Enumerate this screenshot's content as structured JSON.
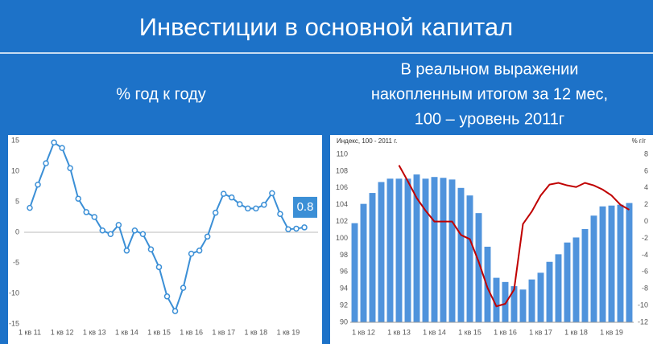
{
  "slide_title": "Инвестиции в основной капитал",
  "chart_data": [
    {
      "type": "line",
      "title": "% год к году",
      "categories": [
        "1 кв 11",
        null,
        null,
        null,
        "1 кв 12",
        null,
        null,
        null,
        "1 кв 13",
        null,
        null,
        null,
        "1 кв 14",
        null,
        null,
        null,
        "1 кв 15",
        null,
        null,
        null,
        "1 кв 16",
        null,
        null,
        null,
        "1 кв 17",
        null,
        null,
        null,
        "1 кв 18",
        null,
        null,
        null,
        "1 кв 19",
        null,
        null
      ],
      "values": [
        4.0,
        7.8,
        11.3,
        14.7,
        13.8,
        10.5,
        5.5,
        3.3,
        2.5,
        0.3,
        -0.3,
        1.2,
        -3.0,
        0.3,
        -0.3,
        -2.8,
        -5.7,
        -10.5,
        -12.9,
        -9.1,
        -3.5,
        -3.0,
        -0.7,
        3.2,
        6.3,
        5.7,
        4.6,
        3.9,
        3.9,
        4.5,
        6.4,
        3.0,
        0.5,
        0.6,
        0.8
      ],
      "labeled_index": 34,
      "color": "#3b8fd6",
      "ylim": [
        -15,
        15
      ],
      "yticks": [
        -15,
        -10,
        -5,
        0,
        5,
        10,
        15
      ],
      "grid": false
    },
    {
      "type": "combo",
      "title": [
        "В реальном выражении",
        "накопленным итогом за 12 мес,",
        "100 – уровень 2011г"
      ],
      "ylabel": "Индекс, 100 - 2011 г.",
      "y2label": "% г/г",
      "categories": [
        null,
        "1 кв 12",
        null,
        null,
        null,
        "1 кв 13",
        null,
        null,
        null,
        "1 кв 14",
        null,
        null,
        null,
        "1 кв 15",
        null,
        null,
        null,
        "1 кв 16",
        null,
        null,
        null,
        "1 кв 17",
        null,
        null,
        null,
        "1 кв 18",
        null,
        null,
        null,
        "1 кв 19",
        null,
        null
      ],
      "series": [
        {
          "type": "bar",
          "color": "#4f93dc",
          "values": [
            101.8,
            104.1,
            105.4,
            106.7,
            107.1,
            107.1,
            107.1,
            107.6,
            107.1,
            107.3,
            107.2,
            107.0,
            106.0,
            105.1,
            103.0,
            99.0,
            95.3,
            94.8,
            94.3,
            93.9,
            95.1,
            95.9,
            97.2,
            98.1,
            99.5,
            100.1,
            101.1,
            102.7,
            103.8,
            103.9,
            104.0,
            104.2
          ]
        },
        {
          "type": "line",
          "axis": "y2",
          "color": "#c00000",
          "values": [
            null,
            null,
            null,
            null,
            null,
            6.7,
            4.8,
            2.8,
            1.3,
            0.0,
            0.0,
            0.0,
            -1.6,
            -2.1,
            -4.8,
            -7.9,
            -10.1,
            -9.8,
            -8.1,
            -0.3,
            1.2,
            3.1,
            4.4,
            4.6,
            4.3,
            4.1,
            4.6,
            4.3,
            3.8,
            3.1,
            2.0,
            1.4
          ]
        }
      ],
      "ylim": [
        90,
        110
      ],
      "yticks": [
        90,
        92,
        94,
        96,
        98,
        100,
        102,
        104,
        106,
        108,
        110
      ],
      "y2lim": [
        -12,
        8
      ],
      "y2ticks": [
        -12,
        -10,
        -8,
        -6,
        -4,
        -2,
        0,
        2,
        4,
        6,
        8
      ],
      "grid": false
    }
  ]
}
